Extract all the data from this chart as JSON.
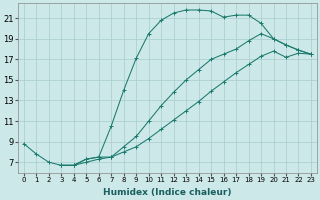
{
  "background_color": "#cde8e8",
  "grid_color": "#a8cccc",
  "line_color": "#1a7a6e",
  "xlabel": "Humidex (Indice chaleur)",
  "xlim": [
    -0.5,
    23.5
  ],
  "ylim": [
    6.0,
    22.5
  ],
  "xtick_labels": [
    "0",
    "1",
    "2",
    "3",
    "4",
    "5",
    "6",
    "7",
    "8",
    "9",
    "10",
    "11",
    "12",
    "13",
    "14",
    "15",
    "16",
    "17",
    "18",
    "19",
    "20",
    "21",
    "22",
    "23"
  ],
  "ytick_vals": [
    7,
    9,
    11,
    13,
    15,
    17,
    19,
    21
  ],
  "line1_x": [
    0,
    1,
    2,
    3,
    4,
    5,
    6,
    7,
    8,
    9,
    10,
    11,
    12,
    13,
    14,
    15,
    16,
    17,
    18,
    19,
    20,
    21,
    22,
    23
  ],
  "line1_y": [
    8.8,
    7.8,
    7.0,
    6.7,
    6.7,
    7.3,
    7.5,
    10.5,
    14.0,
    17.1,
    19.5,
    20.8,
    21.5,
    21.8,
    21.8,
    21.7,
    21.1,
    21.3,
    21.3,
    20.5,
    19.0,
    18.4,
    17.9,
    17.5
  ],
  "line2_x": [
    3,
    4,
    5,
    6,
    7,
    8,
    9,
    10,
    11,
    12,
    13,
    14,
    15,
    16,
    17,
    18,
    19,
    20,
    21,
    22,
    23
  ],
  "line2_y": [
    6.7,
    6.7,
    7.0,
    7.3,
    7.5,
    8.0,
    8.5,
    9.3,
    10.2,
    11.1,
    12.0,
    12.9,
    13.9,
    14.8,
    15.7,
    16.5,
    17.3,
    17.8,
    17.2,
    17.6,
    17.5
  ],
  "line3_x": [
    3,
    4,
    5,
    6,
    7,
    8,
    9,
    10,
    11,
    12,
    13,
    14,
    15,
    16,
    17,
    18,
    19,
    20,
    21,
    22,
    23
  ],
  "line3_y": [
    6.7,
    6.7,
    7.3,
    7.5,
    7.5,
    8.5,
    9.5,
    11.0,
    12.5,
    13.8,
    15.0,
    16.0,
    17.0,
    17.5,
    18.0,
    18.8,
    19.5,
    19.0,
    18.4,
    17.9,
    17.5
  ]
}
